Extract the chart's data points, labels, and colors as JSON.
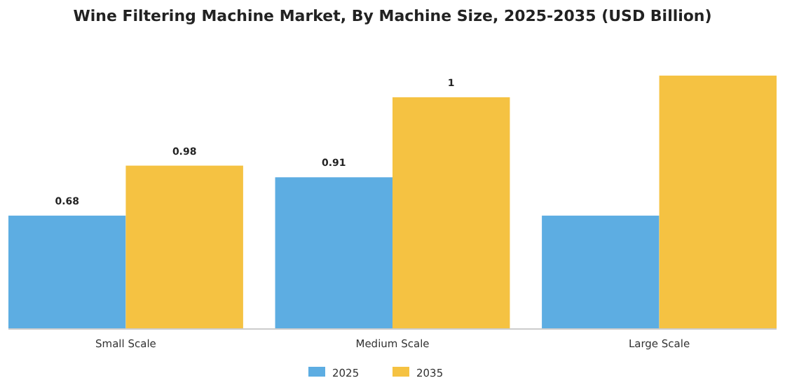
{
  "chart_data": {
    "type": "bar",
    "title": "Wine Filtering Machine Market, By Machine Size, 2025-2035 (USD Billion)",
    "categories": [
      "Small Scale",
      "Medium Scale",
      "Large Scale"
    ],
    "series": [
      {
        "name": "2025",
        "color": "#5dade2",
        "values": [
          0.68,
          0.91,
          0.68
        ],
        "value_labels": [
          "0.68",
          "0.91",
          null
        ]
      },
      {
        "name": "2035",
        "color": "#f5c242",
        "values": [
          0.98,
          1.39,
          1.52
        ],
        "value_labels": [
          "0.98",
          "1",
          null
        ]
      }
    ],
    "legend": "bottom",
    "grid": false
  }
}
